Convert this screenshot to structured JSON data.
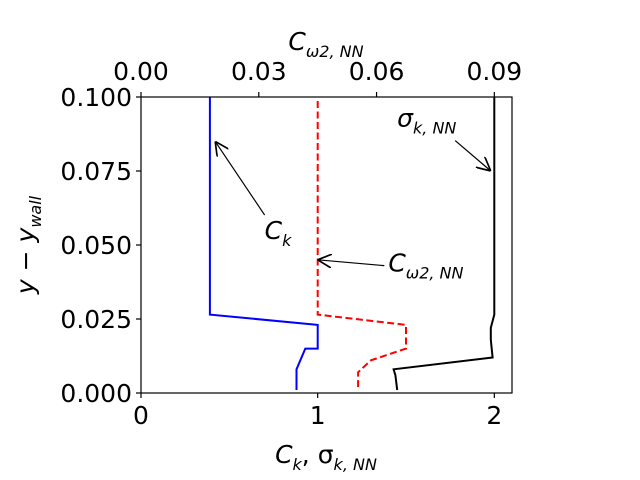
{
  "chart_data": {
    "type": "line",
    "axes": {
      "bottom": {
        "label": "Ck, σk,NN",
        "xlim": [
          0,
          2.1
        ],
        "ticks": [
          "0",
          "1",
          "2"
        ]
      },
      "top": {
        "label": "Cω2,NN",
        "xlim": [
          0,
          0.0945
        ],
        "ticks": [
          "0.00",
          "0.03",
          "0.06",
          "0.09"
        ]
      },
      "left": {
        "label": "y − y_wall",
        "ylim": [
          0,
          0.1
        ],
        "ticks": [
          "0.000",
          "0.025",
          "0.050",
          "0.075",
          "0.100"
        ]
      }
    },
    "series": [
      {
        "name": "Ck",
        "axis": "bottom",
        "color": "#0000ff",
        "dash": "solid",
        "points": [
          [
            0.88,
            0.001
          ],
          [
            0.88,
            0.008
          ],
          [
            0.93,
            0.015
          ],
          [
            1.0,
            0.015
          ],
          [
            1.0,
            0.023
          ],
          [
            0.39,
            0.0265
          ],
          [
            0.39,
            0.1
          ]
        ]
      },
      {
        "name": "Cω2,NN",
        "axis": "top",
        "color": "#ff0000",
        "dash": "dashed",
        "points": [
          [
            0.0553,
            0.002
          ],
          [
            0.0553,
            0.007
          ],
          [
            0.0585,
            0.011
          ],
          [
            0.0675,
            0.015
          ],
          [
            0.0675,
            0.023
          ],
          [
            0.045,
            0.0265
          ],
          [
            0.045,
            0.1
          ]
        ]
      },
      {
        "name": "σk,NN",
        "axis": "bottom",
        "color": "#000000",
        "dash": "solid",
        "points": [
          [
            1.45,
            0.001
          ],
          [
            1.44,
            0.006
          ],
          [
            1.43,
            0.008
          ],
          [
            1.99,
            0.012
          ],
          [
            1.98,
            0.018
          ],
          [
            1.98,
            0.022
          ],
          [
            2.0,
            0.0265
          ],
          [
            2.0,
            0.1
          ]
        ]
      }
    ],
    "annotations": [
      {
        "text": "Ck",
        "target_axis": "bottom",
        "target": [
          0.42,
          0.085
        ],
        "text_pos": [
          0.7,
          0.052
        ]
      },
      {
        "text": "Cω2,NN",
        "target_axis": "bottom",
        "target": [
          1.0,
          0.045
        ],
        "text_pos": [
          1.4,
          0.041
        ]
      },
      {
        "text": "σk,NN",
        "target_axis": "bottom",
        "target": [
          1.98,
          0.075
        ],
        "text_pos": [
          1.45,
          0.09
        ]
      }
    ]
  }
}
